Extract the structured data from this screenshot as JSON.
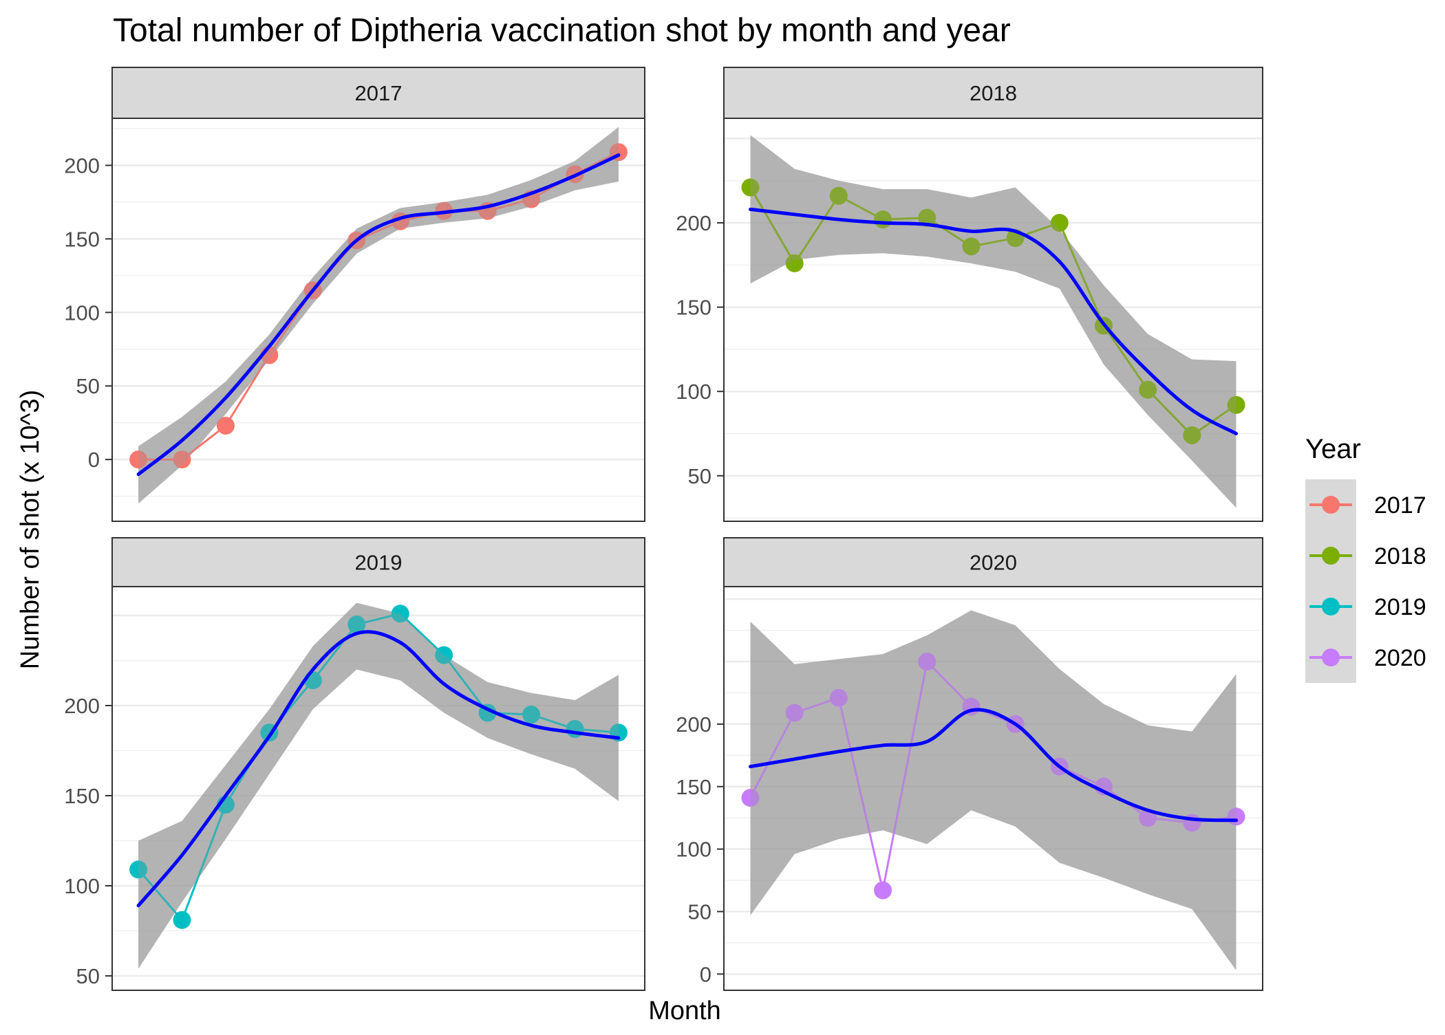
{
  "chart_data": {
    "type": "line",
    "title": "Total number of Diptheria vaccination shot by month and year",
    "xlabel": "Month",
    "ylabel": "Number of shot (x 10^3)",
    "legend": {
      "title": "Year",
      "placement": "right",
      "entries": [
        {
          "label": "2017",
          "color": "#F8766D"
        },
        {
          "label": "2018",
          "color": "#7CAE00"
        },
        {
          "label": "2019",
          "color": "#00BFC4"
        },
        {
          "label": "2020",
          "color": "#C77CFF"
        }
      ]
    },
    "grid": true,
    "smooth_color": "#0000FF",
    "band_color": "#999999",
    "x": [
      1,
      2,
      3,
      4,
      5,
      6,
      7,
      8,
      9,
      10,
      11,
      12
    ],
    "panels": [
      {
        "strip": "2017",
        "color": "#F8766D",
        "ylim": [
          -42,
          232
        ],
        "yticks": [
          0,
          50,
          100,
          150,
          200
        ],
        "ytick_labels": [
          "0",
          "50",
          "100",
          "150",
          "200"
        ],
        "values": [
          0,
          0,
          23,
          71,
          115,
          149,
          162,
          169,
          169,
          177,
          194,
          209
        ],
        "smooth": [
          -10,
          13,
          42,
          77,
          115,
          149,
          164,
          168,
          172,
          181,
          193,
          207
        ],
        "band_lower": [
          -30,
          -4,
          31,
          68,
          106,
          140,
          157,
          161,
          164,
          172,
          183,
          189
        ],
        "band_upper": [
          9,
          29,
          53,
          85,
          124,
          157,
          171,
          175,
          180,
          190,
          203,
          226
        ]
      },
      {
        "strip": "2018",
        "color": "#7CAE00",
        "ylim": [
          23,
          262
        ],
        "yticks": [
          50,
          100,
          150,
          200
        ],
        "ytick_labels": [
          "50",
          "100",
          "150",
          "200"
        ],
        "values": [
          221,
          176,
          216,
          202,
          203,
          186,
          191,
          200,
          139,
          101,
          74,
          92
        ],
        "smooth": [
          208,
          205,
          202,
          200,
          199,
          195,
          195,
          177,
          140,
          112,
          89,
          75
        ],
        "band_lower": [
          164,
          178,
          181,
          182,
          180,
          176,
          171,
          161,
          116,
          86,
          59,
          31
        ],
        "band_upper": [
          252,
          232,
          225,
          220,
          220,
          215,
          221,
          196,
          163,
          134,
          119,
          118
        ]
      },
      {
        "strip": "2019",
        "color": "#00BFC4",
        "ylim": [
          42,
          266
        ],
        "yticks": [
          50,
          100,
          150,
          200
        ],
        "ytick_labels": [
          "50",
          "100",
          "150",
          "200"
        ],
        "values": [
          109,
          81,
          145,
          185,
          214,
          245,
          251,
          228,
          196,
          195,
          187,
          185
        ],
        "smooth": [
          89,
          117,
          150,
          183,
          220,
          240,
          235,
          212,
          198,
          189,
          185,
          182
        ],
        "band_lower": [
          54,
          91,
          126,
          162,
          198,
          220,
          214,
          196,
          182,
          173,
          165,
          147
        ],
        "band_upper": [
          125,
          136,
          167,
          198,
          233,
          257,
          251,
          228,
          213,
          207,
          203,
          217
        ]
      },
      {
        "strip": "2020",
        "color": "#C77CFF",
        "ylim": [
          -13,
          310
        ],
        "yticks": [
          0,
          50,
          100,
          150,
          200
        ],
        "ytick_labels": [
          "0",
          "50",
          "100",
          "150",
          "200"
        ],
        "values": [
          141,
          209,
          221,
          67,
          250,
          214,
          200,
          166,
          150,
          125,
          121,
          126
        ],
        "smooth": [
          166,
          172,
          178,
          183,
          186,
          211,
          200,
          166,
          146,
          131,
          124,
          123
        ],
        "band_lower": [
          47,
          96,
          108,
          115,
          104,
          131,
          118,
          89,
          77,
          64,
          52,
          3
        ],
        "band_upper": [
          282,
          248,
          252,
          256,
          271,
          291,
          279,
          244,
          216,
          199,
          194,
          240
        ]
      }
    ]
  }
}
